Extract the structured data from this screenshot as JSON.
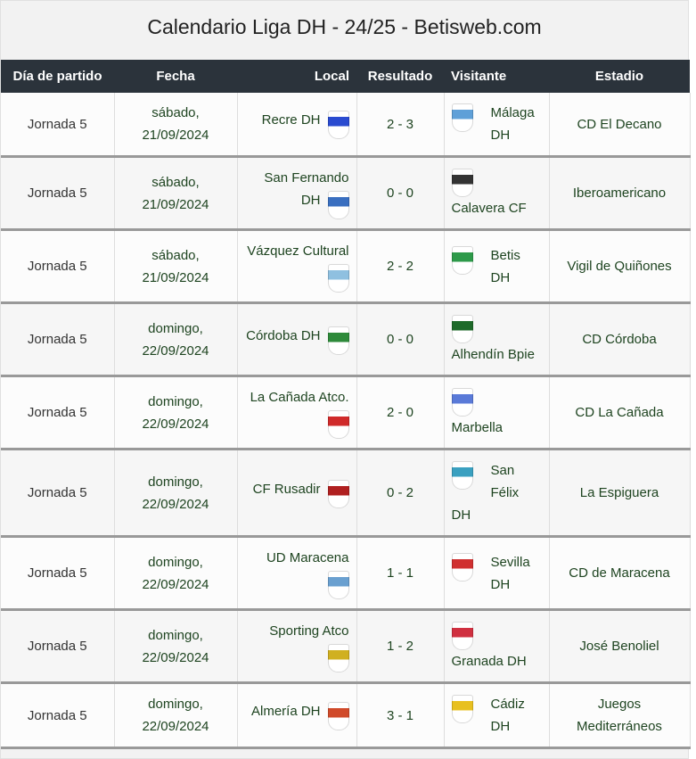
{
  "title": "Calendario Liga DH - 24/25 - Betisweb.com",
  "headers": [
    "Día de partido",
    "Fecha",
    "Local",
    "Resultado",
    "Visitante",
    "Estadio"
  ],
  "rows": [
    {
      "jornada": "Jornada 5",
      "dia": "sábado,",
      "fecha": "21/09/2024",
      "local": "Recre DH",
      "local_color": "#2a4bd0",
      "resultado": "2 - 3",
      "visitante": "Málaga DH",
      "visitante_color": "#5fa0d8",
      "estadio": "CD El Decano"
    },
    {
      "jornada": "Jornada 5",
      "dia": "sábado,",
      "fecha": "21/09/2024",
      "local": "San Fernando DH",
      "local_color": "#3a6fc0",
      "resultado": "0 - 0",
      "visitante": "Calavera CF",
      "visitante_color": "#333333",
      "estadio": "Iberoamericano"
    },
    {
      "jornada": "Jornada 5",
      "dia": "sábado,",
      "fecha": "21/09/2024",
      "local": "Vázquez Cultural",
      "local_color": "#8fc0e0",
      "resultado": "2 - 2",
      "visitante": "Betis DH",
      "visitante_color": "#2e9a4a",
      "estadio": "Vigil de Quiñones"
    },
    {
      "jornada": "Jornada 5",
      "dia": "domingo,",
      "fecha": "22/09/2024",
      "local": "Córdoba DH",
      "local_color": "#2e8a3a",
      "resultado": "0 - 0",
      "visitante": "Alhendín Bpie",
      "visitante_color": "#1e6a2a",
      "estadio": "CD Córdoba"
    },
    {
      "jornada": "Jornada 5",
      "dia": "domingo,",
      "fecha": "22/09/2024",
      "local": "La Cañada Atco.",
      "local_color": "#d02a2a",
      "resultado": "2 - 0",
      "visitante": "Marbella",
      "visitante_color": "#5a7ad8",
      "estadio": "CD La Cañada"
    },
    {
      "jornada": "Jornada 5",
      "dia": "domingo,",
      "fecha": "22/09/2024",
      "local": "CF Rusadir",
      "local_color": "#b02020",
      "resultado": "0 - 2",
      "visitante": "San Félix DH",
      "visitante_color": "#3aa0c0",
      "estadio": "La Espiguera"
    },
    {
      "jornada": "Jornada 5",
      "dia": "domingo,",
      "fecha": "22/09/2024",
      "local": "UD Maracena",
      "local_color": "#6aa0d0",
      "resultado": "1 - 1",
      "visitante": "Sevilla DH",
      "visitante_color": "#d03030",
      "estadio": "CD de Maracena"
    },
    {
      "jornada": "Jornada 5",
      "dia": "domingo,",
      "fecha": "22/09/2024",
      "local": "Sporting Atco",
      "local_color": "#d0b020",
      "resultado": "1 - 2",
      "visitante": "Granada DH",
      "visitante_color": "#d03040",
      "estadio": "José Benoliel"
    },
    {
      "jornada": "Jornada 5",
      "dia": "domingo,",
      "fecha": "22/09/2024",
      "local": "Almería DH",
      "local_color": "#d04a2a",
      "resultado": "3 - 1",
      "visitante": "Cádiz DH",
      "visitante_color": "#e8c020",
      "estadio": "Juegos Mediterráneos"
    }
  ]
}
